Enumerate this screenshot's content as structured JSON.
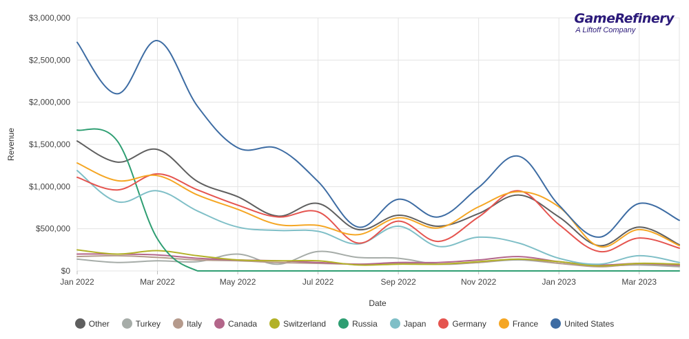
{
  "brand": {
    "name": "GameRefinery",
    "tagline": "A Liftoff Company",
    "color": "#2b1a7a"
  },
  "chart_data": {
    "type": "line",
    "xlabel": "Date",
    "ylabel": "Revenue",
    "ylim": [
      0,
      3000000
    ],
    "yticks": [
      0,
      500000,
      1000000,
      1500000,
      2000000,
      2500000,
      3000000
    ],
    "ytick_labels": [
      "$0",
      "$500,000",
      "$1,000,000",
      "$1,500,000",
      "$2,000,000",
      "$2,500,000",
      "$3,000,000"
    ],
    "x": [
      "2022-01",
      "2022-02",
      "2022-03",
      "2022-04",
      "2022-05",
      "2022-06",
      "2022-07",
      "2022-08",
      "2022-09",
      "2022-10",
      "2022-11",
      "2022-12",
      "2023-01",
      "2023-02",
      "2023-03",
      "2023-04"
    ],
    "xtick_labels": [
      {
        "label": "Jan 2022",
        "index": 0
      },
      {
        "label": "Mar 2022",
        "index": 2
      },
      {
        "label": "May 2022",
        "index": 4
      },
      {
        "label": "Jul 2022",
        "index": 6
      },
      {
        "label": "Sep 2022",
        "index": 8
      },
      {
        "label": "Nov 2022",
        "index": 10
      },
      {
        "label": "Jan 2023",
        "index": 12
      },
      {
        "label": "Mar 2023",
        "index": 14
      }
    ],
    "grid": true,
    "legend_position": "bottom",
    "series": [
      {
        "name": "Other",
        "color": "#5f5f5f",
        "values": [
          1540000,
          1290000,
          1440000,
          1060000,
          880000,
          650000,
          800000,
          490000,
          660000,
          530000,
          680000,
          900000,
          640000,
          300000,
          520000,
          310000
        ]
      },
      {
        "name": "Turkey",
        "color": "#a6aca8",
        "values": [
          140000,
          100000,
          120000,
          110000,
          200000,
          80000,
          230000,
          160000,
          150000,
          80000,
          100000,
          130000,
          90000,
          60000,
          70000,
          50000
        ]
      },
      {
        "name": "Italy",
        "color": "#b59a8c",
        "values": [
          170000,
          180000,
          160000,
          130000,
          120000,
          100000,
          90000,
          80000,
          90000,
          80000,
          100000,
          140000,
          90000,
          50000,
          80000,
          60000
        ]
      },
      {
        "name": "Canada",
        "color": "#b3668a",
        "values": [
          200000,
          200000,
          190000,
          150000,
          130000,
          120000,
          100000,
          80000,
          100000,
          100000,
          130000,
          170000,
          110000,
          70000,
          90000,
          70000
        ]
      },
      {
        "name": "Switzerland",
        "color": "#b2b127",
        "values": [
          250000,
          200000,
          240000,
          180000,
          130000,
          120000,
          120000,
          70000,
          80000,
          80000,
          110000,
          140000,
          110000,
          60000,
          90000,
          80000
        ]
      },
      {
        "name": "Russia",
        "color": "#2e9e72",
        "values": [
          1670000,
          1540000,
          380000,
          0,
          0,
          0,
          0,
          0,
          0,
          0,
          0,
          0,
          0,
          0,
          0,
          0
        ]
      },
      {
        "name": "Japan",
        "color": "#7fbfc7",
        "values": [
          1190000,
          820000,
          950000,
          710000,
          520000,
          480000,
          470000,
          320000,
          530000,
          290000,
          400000,
          330000,
          150000,
          80000,
          180000,
          100000
        ]
      },
      {
        "name": "Germany",
        "color": "#e5544f",
        "values": [
          1110000,
          960000,
          1150000,
          960000,
          780000,
          640000,
          700000,
          330000,
          590000,
          350000,
          640000,
          950000,
          550000,
          230000,
          390000,
          270000
        ]
      },
      {
        "name": "France",
        "color": "#f5a623",
        "values": [
          1280000,
          1070000,
          1130000,
          900000,
          730000,
          550000,
          540000,
          430000,
          630000,
          510000,
          760000,
          940000,
          760000,
          290000,
          490000,
          300000
        ]
      },
      {
        "name": "United States",
        "color": "#3d6ca3",
        "values": [
          2710000,
          2100000,
          2730000,
          1950000,
          1460000,
          1450000,
          1060000,
          520000,
          850000,
          640000,
          990000,
          1360000,
          780000,
          400000,
          800000,
          600000
        ]
      }
    ]
  }
}
